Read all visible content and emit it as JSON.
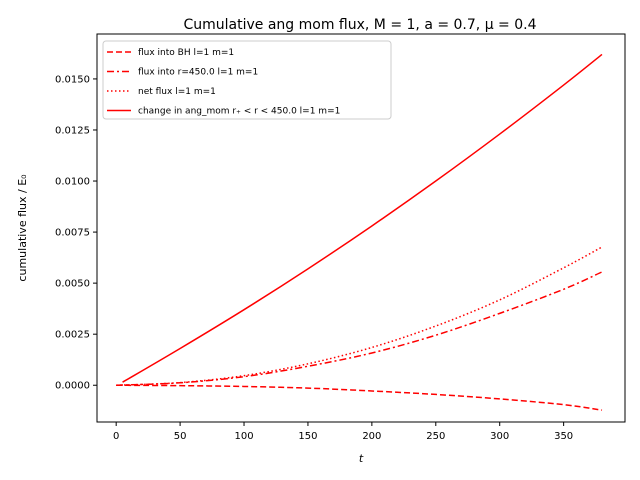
{
  "chart_data": {
    "type": "line",
    "title": "Cumulative ang mom flux, M = 1, a = 0.7, μ = 0.4",
    "xlabel": "t",
    "ylabel": "cumulative flux / E₀",
    "xlim": [
      -15,
      398
    ],
    "ylim": [
      -0.0018,
      0.0172
    ],
    "xticks": [
      0,
      50,
      100,
      150,
      200,
      250,
      300,
      350
    ],
    "xtick_labels": [
      "0",
      "50",
      "100",
      "150",
      "200",
      "250",
      "300",
      "350"
    ],
    "yticks": [
      0.0,
      0.0025,
      0.005,
      0.0075,
      0.01,
      0.0125,
      0.015
    ],
    "ytick_labels": [
      "0.0000",
      "0.0025",
      "0.0050",
      "0.0075",
      "0.0100",
      "0.0125",
      "0.0150"
    ],
    "grid": false,
    "legend_position": "top-left",
    "series": [
      {
        "name": "flux into BH l=1 m=1",
        "color": "#ff0000",
        "dash": "dashed",
        "x": [
          0,
          50,
          100,
          150,
          200,
          250,
          300,
          350,
          380
        ],
        "y": [
          0.0,
          -2e-05,
          -6e-05,
          -0.00014,
          -0.00028,
          -0.00045,
          -0.00067,
          -0.00095,
          -0.00122
        ]
      },
      {
        "name": "flux into r=450.0 l=1 m=1",
        "color": "#ff0000",
        "dash": "dashdot",
        "x": [
          0,
          50,
          100,
          150,
          200,
          250,
          300,
          350,
          380
        ],
        "y": [
          0.0,
          0.00012,
          0.00042,
          0.00093,
          0.00158,
          0.00245,
          0.00352,
          0.0047,
          0.00555
        ]
      },
      {
        "name": "net flux l=1 m=1",
        "color": "#ff0000",
        "dash": "dotted",
        "x": [
          0,
          50,
          100,
          150,
          200,
          250,
          300,
          350,
          380
        ],
        "y": [
          0.0,
          0.00013,
          0.00047,
          0.00105,
          0.00185,
          0.0029,
          0.00418,
          0.00575,
          0.00677
        ]
      },
      {
        "name": "change in ang_mom r₊ < r < 450.0 l=1 m=1",
        "color": "#ff0000",
        "dash": "solid",
        "x": [
          5,
          50,
          100,
          150,
          200,
          250,
          300,
          350,
          380
        ],
        "y": [
          0.00015,
          0.0018,
          0.0037,
          0.0057,
          0.0078,
          0.01,
          0.0123,
          0.0147,
          0.0162
        ]
      }
    ],
    "legend_entries": [
      "flux into BH l=1 m=1",
      "flux into r=450.0 l=1 m=1",
      "net flux l=1 m=1",
      "change in ang_mom r₊ < r < 450.0 l=1 m=1"
    ]
  }
}
